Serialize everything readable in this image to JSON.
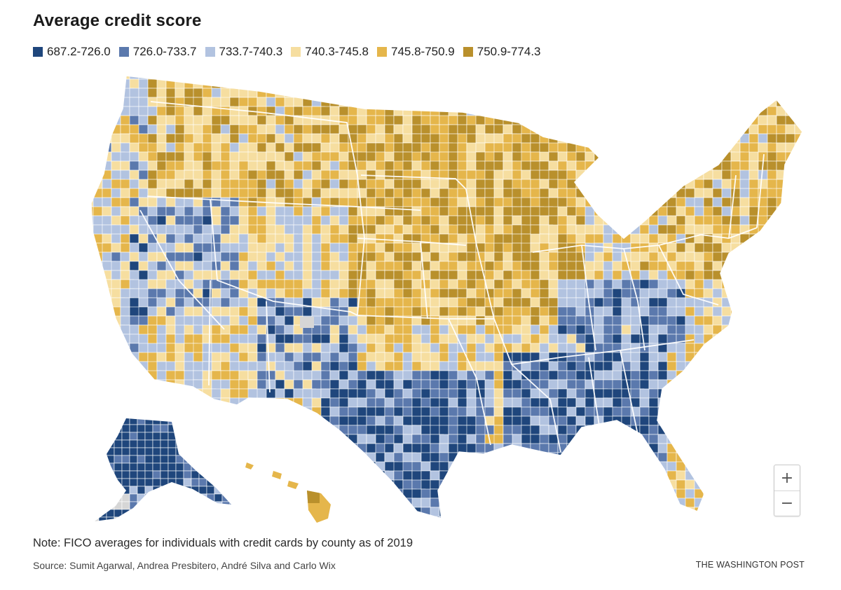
{
  "title": "Average credit score",
  "legend": [
    {
      "label": "687.2-726.0",
      "color": "#1f467c"
    },
    {
      "label": "726.0-733.7",
      "color": "#5b79ad"
    },
    {
      "label": "733.7-740.3",
      "color": "#b2c3e0"
    },
    {
      "label": "740.3-745.8",
      "color": "#f6dea0"
    },
    {
      "label": "745.8-750.9",
      "color": "#e5b64b"
    },
    {
      "label": "750.9-774.3",
      "color": "#b9902c"
    }
  ],
  "no_data_color": "#d6d6d6",
  "zoom": {
    "in_label": "+",
    "out_label": "−"
  },
  "note": "Note: FICO averages for individuals with credit cards by county as of 2019",
  "source": "Source: Sumit Agarwal, Andrea Presbitero, André Silva and Carlo Wix",
  "credit": "THE WASHINGTON POST"
}
